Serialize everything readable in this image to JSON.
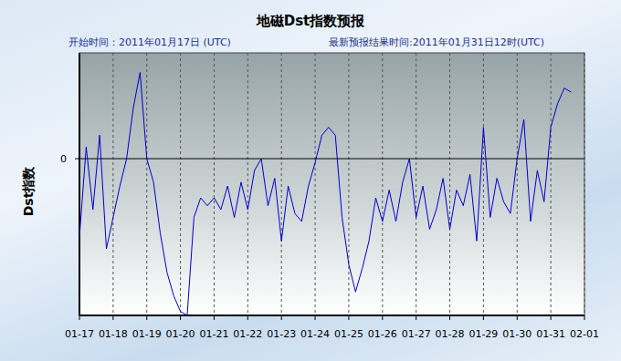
{
  "chart_data": {
    "type": "line",
    "title": "地磁Dst指数预报",
    "subtitle": "开始时间：2011年01月17日 (UTC)",
    "annotations": [
      "最新预报结果时间:2011年01月31日12时(UTC)"
    ],
    "y_label": "Dst指数",
    "color": "#0000cc",
    "grid": true,
    "x": [
      0,
      0.2,
      0.4,
      0.6,
      0.8,
      1.0,
      1.2,
      1.4,
      1.6,
      1.8,
      2.0,
      2.2,
      2.4,
      2.6,
      2.8,
      3.0,
      3.2,
      3.4,
      3.6,
      3.8,
      4.0,
      4.2,
      4.4,
      4.6,
      4.8,
      5.0,
      5.2,
      5.4,
      5.6,
      5.8,
      6.0,
      6.2,
      6.4,
      6.6,
      6.8,
      7.0,
      7.2,
      7.4,
      7.6,
      7.8,
      8.0,
      8.2,
      8.4,
      8.6,
      8.8,
      9.0,
      9.2,
      9.4,
      9.6,
      9.8,
      10.0,
      10.2,
      10.4,
      10.6,
      10.8,
      11.0,
      11.2,
      11.4,
      11.6,
      11.8,
      12.0,
      12.2,
      12.4,
      12.6,
      12.8,
      13.0,
      13.2,
      13.4,
      13.6,
      13.8,
      14.0,
      14.2,
      14.4,
      14.6
    ],
    "values": [
      -20,
      3,
      -13,
      6,
      -23,
      -15,
      -7,
      0,
      13,
      22,
      0,
      -6,
      -19,
      -29,
      -35,
      -39,
      -40,
      -15,
      -10,
      -12,
      -10,
      -13,
      -7,
      -15,
      -6,
      -13,
      -3,
      0,
      -12,
      -5,
      -21,
      -7,
      -14,
      -16,
      -7,
      -1,
      6,
      8,
      6,
      -15,
      -27,
      -34,
      -28,
      -21,
      -10,
      -16,
      -8,
      -16,
      -6,
      0,
      -15,
      -7,
      -18,
      -13,
      -5,
      -18,
      -8,
      -12,
      -4,
      -21,
      8,
      -15,
      -5,
      -11,
      -14,
      0,
      10,
      -16,
      -3,
      -11,
      8,
      14,
      18,
      17
    ],
    "xlim": [
      0,
      15
    ],
    "xticks": [
      {
        "value": 0,
        "label": "01-17"
      },
      {
        "value": 1,
        "label": "01-18"
      },
      {
        "value": 2,
        "label": "01-19"
      },
      {
        "value": 3,
        "label": "01-20"
      },
      {
        "value": 4,
        "label": "01-21"
      },
      {
        "value": 5,
        "label": "01-22"
      },
      {
        "value": 6,
        "label": "01-23"
      },
      {
        "value": 7,
        "label": "01-24"
      },
      {
        "value": 8,
        "label": "01-25"
      },
      {
        "value": 9,
        "label": "01-26"
      },
      {
        "value": 10,
        "label": "01-27"
      },
      {
        "value": 11,
        "label": "01-28"
      },
      {
        "value": 12,
        "label": "01-29"
      },
      {
        "value": 13,
        "label": "01-30"
      },
      {
        "value": 14,
        "label": "01-31"
      },
      {
        "value": 15,
        "label": "02-01"
      }
    ],
    "ylim": [
      -40,
      27
    ],
    "yticks": [
      0
    ]
  }
}
